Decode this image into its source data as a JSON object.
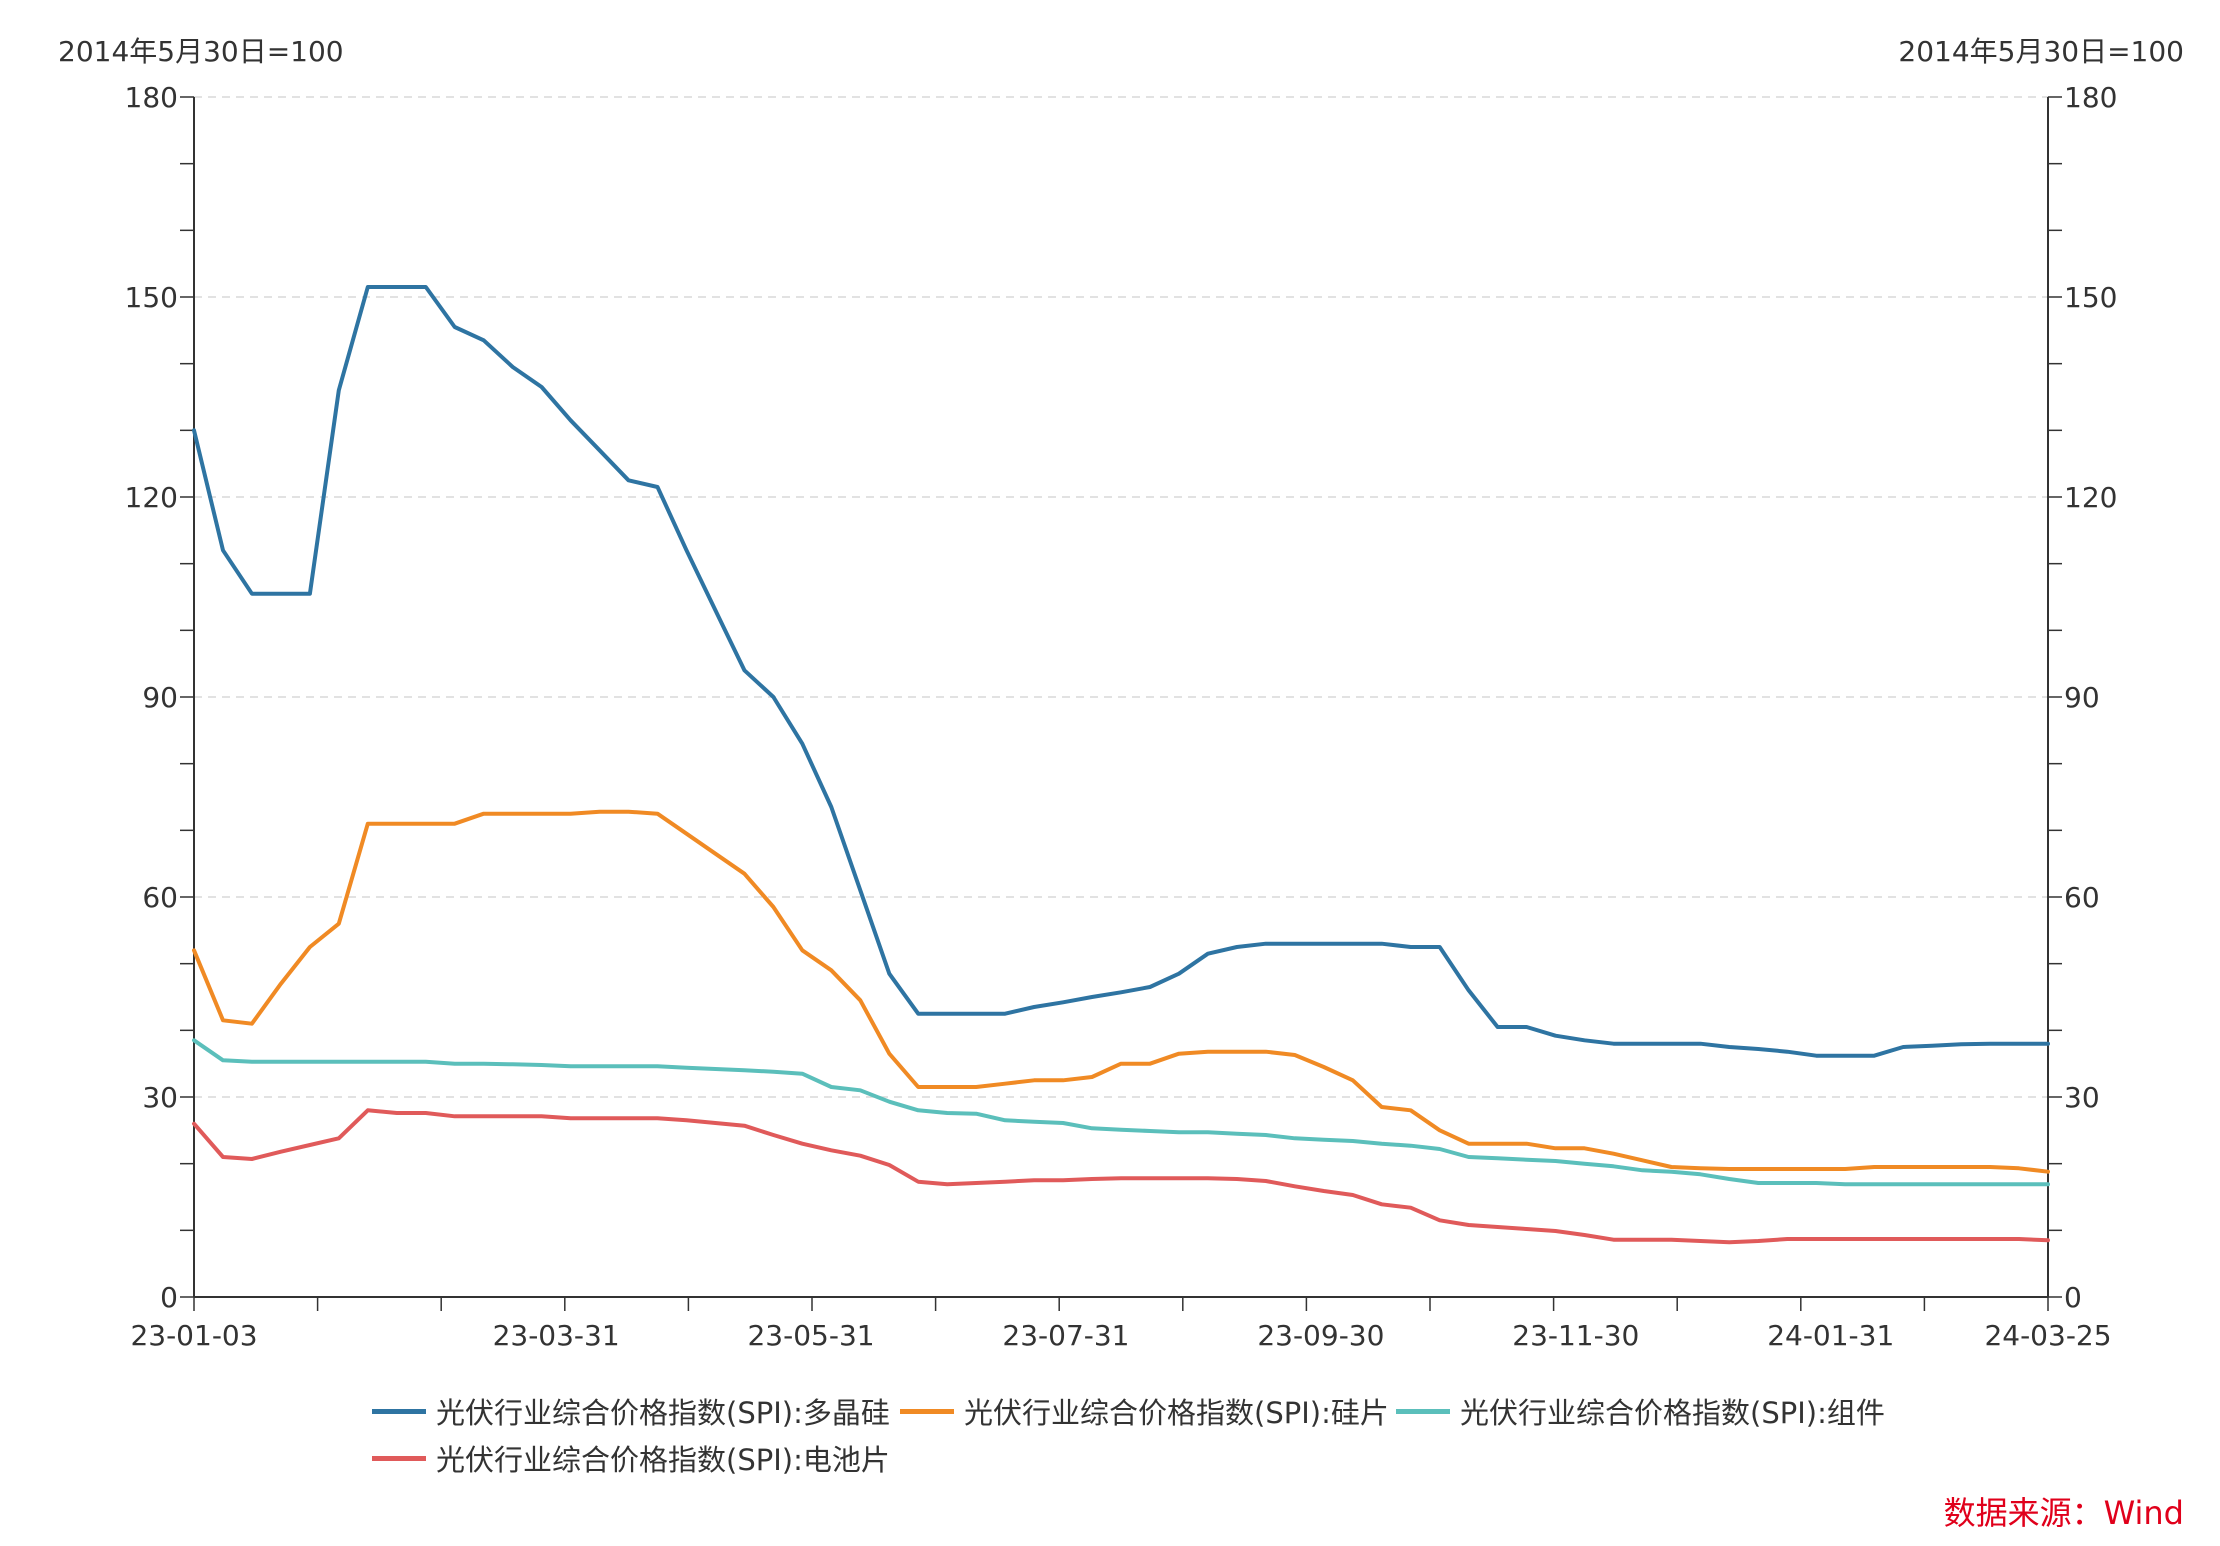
{
  "chart_data": {
    "type": "line",
    "y_axis_left_title": "2014年5月30日=100",
    "y_axis_right_title": "2014年5月30日=100",
    "ylim": [
      0,
      180
    ],
    "y_ticks": [
      0,
      30,
      60,
      90,
      120,
      150,
      180
    ],
    "grid": "horizontal dashed",
    "legend_position": "bottom",
    "x_tick_labels": [
      "23-01-03",
      "23-03-31",
      "23-05-31",
      "23-07-31",
      "23-09-30",
      "23-11-30",
      "24-01-31",
      "24-03-25"
    ],
    "x_tick_label_index": [
      0,
      12.5,
      21.3,
      30.1,
      38.9,
      47.7,
      56.5,
      64
    ],
    "x_minor_tick_count": 15,
    "series": [
      {
        "name": "光伏行业综合价格指数(SPI):多晶硅",
        "color": "#2e74a2",
        "values": [
          130,
          112,
          105.5,
          105.5,
          105.5,
          136,
          151.5,
          151.5,
          151.5,
          145.5,
          143.5,
          139.5,
          136.5,
          131.5,
          127,
          122.5,
          121.5,
          112,
          103,
          94,
          90,
          83,
          73.5,
          61,
          48.5,
          42.5,
          42.5,
          42.5,
          42.5,
          43.5,
          44.2,
          45,
          45.7,
          46.5,
          48.5,
          51.5,
          52.5,
          53,
          53,
          53,
          53,
          53,
          52.5,
          52.5,
          46,
          40.5,
          40.5,
          39.2,
          38.5,
          38,
          38,
          38,
          38,
          37.5,
          37.2,
          36.8,
          36.2,
          36.2,
          36.2,
          37.5,
          37.7,
          37.9,
          38,
          38,
          38
        ]
      },
      {
        "name": "光伏行业综合价格指数(SPI):硅片",
        "color": "#f08a24",
        "values": [
          52,
          41.5,
          41,
          47,
          52.5,
          56,
          71,
          71,
          71,
          71,
          72.5,
          72.5,
          72.5,
          72.5,
          72.8,
          72.8,
          72.5,
          69.5,
          66.5,
          63.5,
          58.5,
          52,
          49,
          44.5,
          36.5,
          31.5,
          31.5,
          31.5,
          32,
          32.5,
          32.5,
          33,
          35,
          35,
          36.5,
          36.8,
          36.8,
          36.8,
          36.3,
          34.5,
          32.5,
          28.5,
          28,
          25,
          23,
          23,
          23,
          22.3,
          22.3,
          21.5,
          20.5,
          19.5,
          19.3,
          19.2,
          19.2,
          19.2,
          19.2,
          19.2,
          19.5,
          19.5,
          19.5,
          19.5,
          19.5,
          19.3,
          18.8
        ]
      },
      {
        "name": "光伏行业综合价格指数(SPI):组件",
        "color": "#5bbfbb",
        "values": [
          38.5,
          35.5,
          35.3,
          35.3,
          35.3,
          35.3,
          35.3,
          35.3,
          35.3,
          35,
          35,
          34.9,
          34.8,
          34.6,
          34.6,
          34.6,
          34.6,
          34.4,
          34.2,
          34,
          33.8,
          33.5,
          31.5,
          31,
          29.3,
          28,
          27.6,
          27.5,
          26.5,
          26.3,
          26.1,
          25.3,
          25.1,
          24.9,
          24.7,
          24.7,
          24.5,
          24.3,
          23.8,
          23.6,
          23.4,
          23,
          22.7,
          22.2,
          21,
          20.8,
          20.6,
          20.4,
          20,
          19.6,
          19,
          18.8,
          18.4,
          17.7,
          17.1,
          17.1,
          17.1,
          16.9,
          16.9,
          16.9,
          16.9,
          16.9,
          16.9,
          16.9,
          16.9
        ]
      },
      {
        "name": "光伏行业综合价格指数(SPI):电池片",
        "color": "#e05a5a",
        "values": [
          26,
          21,
          20.7,
          21.8,
          22.8,
          23.8,
          28,
          27.6,
          27.6,
          27.1,
          27.1,
          27.1,
          27.1,
          26.8,
          26.8,
          26.8,
          26.8,
          26.5,
          26.1,
          25.7,
          24.3,
          23,
          22,
          21.2,
          19.8,
          17.3,
          16.9,
          17.1,
          17.3,
          17.5,
          17.5,
          17.7,
          17.8,
          17.8,
          17.8,
          17.8,
          17.7,
          17.4,
          16.6,
          15.9,
          15.3,
          13.9,
          13.4,
          11.5,
          10.8,
          10.5,
          10.2,
          9.9,
          9.3,
          8.6,
          8.6,
          8.6,
          8.4,
          8.2,
          8.4,
          8.7,
          8.7,
          8.7,
          8.7,
          8.7,
          8.7,
          8.7,
          8.7,
          8.7,
          8.5
        ]
      }
    ]
  },
  "legend_items": [
    {
      "label": "光伏行业综合价格指数(SPI):多晶硅",
      "color": "#2e74a2"
    },
    {
      "label": "光伏行业综合价格指数(SPI):硅片",
      "color": "#f08a24"
    },
    {
      "label": "光伏行业综合价格指数(SPI):组件",
      "color": "#5bbfbb"
    },
    {
      "label": "光伏行业综合价格指数(SPI):电池片",
      "color": "#e05a5a"
    }
  ],
  "source": "数据来源：Wind"
}
